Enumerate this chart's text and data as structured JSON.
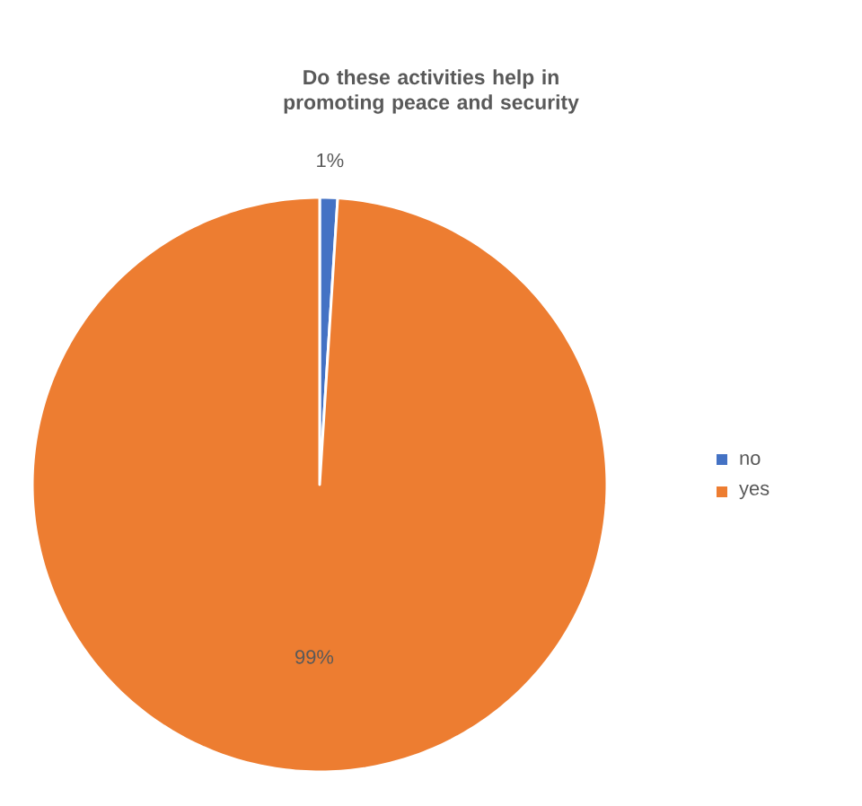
{
  "chart_data": {
    "type": "pie",
    "title": "Do these activities help in promoting peace and security",
    "categories": [
      "no",
      "yes"
    ],
    "values": [
      1,
      99
    ],
    "colors": [
      "#4472c4",
      "#ed7d31"
    ],
    "value_labels": [
      "1%",
      "99%"
    ],
    "legend": "right"
  }
}
